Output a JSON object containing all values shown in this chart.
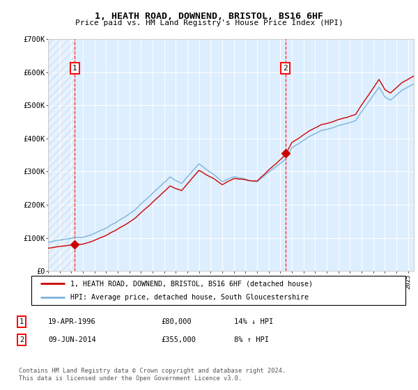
{
  "title": "1, HEATH ROAD, DOWNEND, BRISTOL, BS16 6HF",
  "subtitle": "Price paid vs. HM Land Registry's House Price Index (HPI)",
  "sale1_date": 1996.3,
  "sale1_price": 80000,
  "sale2_date": 2014.44,
  "sale2_price": 355000,
  "ylim_min": 0,
  "ylim_max": 700000,
  "xlim_min": 1994.0,
  "xlim_max": 2025.5,
  "hpi_color": "#7ab4d8",
  "price_color": "#cc0000",
  "bg_color": "#ddeeff",
  "legend1": "1, HEATH ROAD, DOWNEND, BRISTOL, BS16 6HF (detached house)",
  "legend2": "HPI: Average price, detached house, South Gloucestershire",
  "table_row1": [
    "1",
    "19-APR-1996",
    "£80,000",
    "14% ↓ HPI"
  ],
  "table_row2": [
    "2",
    "09-JUN-2014",
    "£355,000",
    "8% ↑ HPI"
  ],
  "footer": "Contains HM Land Registry data © Crown copyright and database right 2024.\nThis data is licensed under the Open Government Licence v3.0."
}
